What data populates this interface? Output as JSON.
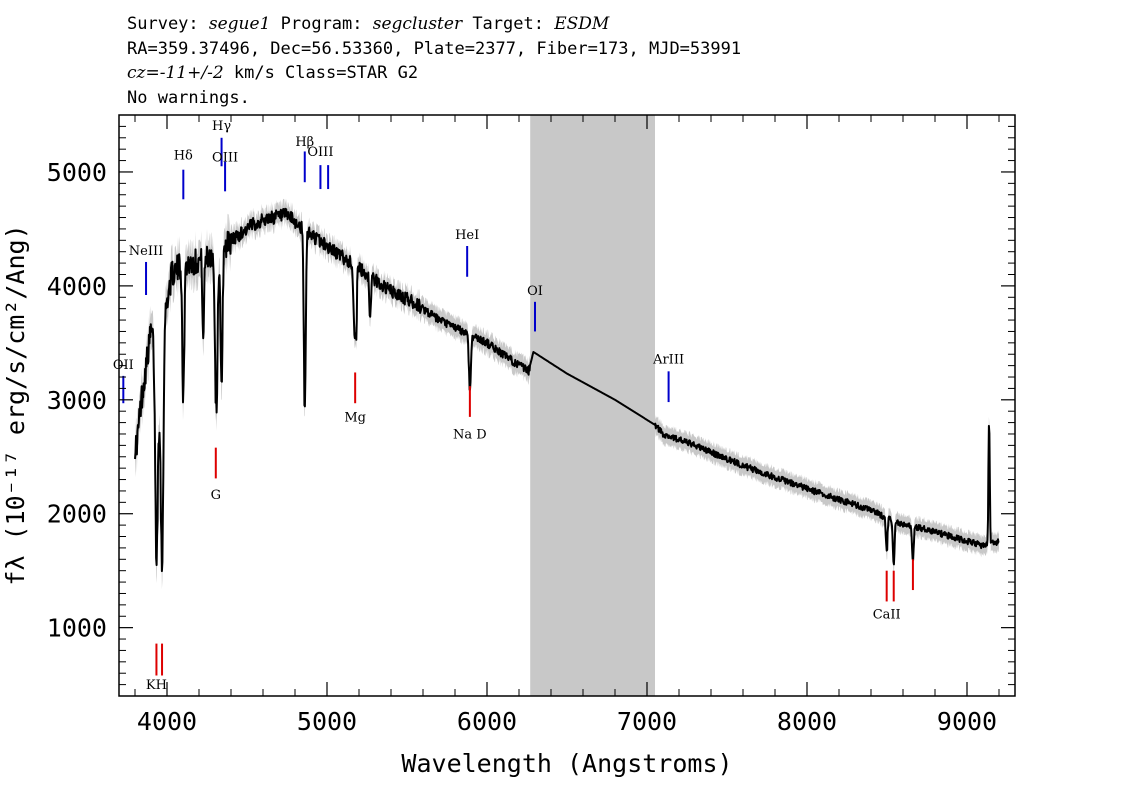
{
  "header": {
    "line1": {
      "survey_label": "Survey: ",
      "survey_value": "segue1",
      "program_label": " Program: ",
      "program_value": "segcluster",
      "target_label": " Target: ",
      "target_value": "ESDM"
    },
    "line2": "RA=359.37496, Dec=56.53360, Plate=2377, Fiber=173, MJD=53991",
    "line3": {
      "cz_value": "cz=-11+/-2",
      "cz_rest": " km/s Class=STAR G2"
    },
    "line4": "No warnings."
  },
  "chart_data": {
    "type": "line",
    "title": "",
    "xlabel": "Wavelength (Angstroms)",
    "ylabel": "f_λ (10^-17 erg/s/cm²/Ang)",
    "ylabel_display": "fλ (10⁻¹⁷ erg/s/cm²/Ang)",
    "xlim": [
      3700,
      9300
    ],
    "ylim": [
      400,
      5500
    ],
    "x_ticks": [
      4000,
      5000,
      6000,
      7000,
      8000,
      9000
    ],
    "x_tick_labels": [
      "4000",
      "5000",
      "6000",
      "7000",
      "8000",
      "9000"
    ],
    "y_ticks": [
      1000,
      2000,
      3000,
      4000,
      5000
    ],
    "y_tick_labels": [
      "1000",
      "2000",
      "3000",
      "4000",
      "5000"
    ],
    "masked_region": [
      6270,
      7050
    ],
    "colors": {
      "spectrum": "#000000",
      "error_band": "#c8c8c8",
      "masked": "#c8c8c8",
      "emission_lines": "#0000cc",
      "absorption_lines": "#dd0000"
    },
    "spectrum_anchor_points": {
      "x": [
        3810,
        3840,
        3870,
        3900,
        3930,
        3950,
        3965,
        3990,
        4030,
        4100,
        4150,
        4250,
        4350,
        4450,
        4550,
        4650,
        4750,
        4850,
        4950,
        5050,
        5150,
        5250,
        5400,
        5550,
        5700,
        5850,
        6000,
        6150,
        6260,
        6290,
        6500,
        6800,
        7050,
        7100,
        7300,
        7500,
        7700,
        7900,
        8100,
        8300,
        8450,
        8500,
        8600,
        8700,
        8850,
        9000,
        9100,
        9200
      ],
      "y": [
        2600,
        3000,
        3300,
        3600,
        3500,
        3100,
        3500,
        3800,
        4100,
        4200,
        4200,
        4250,
        4350,
        4450,
        4550,
        4600,
        4620,
        4500,
        4400,
        4300,
        4200,
        4100,
        3950,
        3850,
        3700,
        3600,
        3500,
        3350,
        3250,
        3420,
        3230,
        3000,
        2780,
        2700,
        2600,
        2480,
        2370,
        2270,
        2170,
        2080,
        2000,
        1960,
        1900,
        1880,
        1820,
        1760,
        1720,
        1750
      ]
    },
    "absorption_features": [
      {
        "x": 3934,
        "depth": 1800,
        "width": 8
      },
      {
        "x": 3969,
        "depth": 2000,
        "width": 8
      },
      {
        "x": 4102,
        "depth": 1200,
        "width": 6
      },
      {
        "x": 4227,
        "depth": 700,
        "width": 5
      },
      {
        "x": 4308,
        "depth": 1400,
        "width": 8
      },
      {
        "x": 4341,
        "depth": 1300,
        "width": 6
      },
      {
        "x": 4861,
        "depth": 1600,
        "width": 6
      },
      {
        "x": 5172,
        "depth": 600,
        "width": 6
      },
      {
        "x": 5183,
        "depth": 500,
        "width": 4
      },
      {
        "x": 5270,
        "depth": 350,
        "width": 5
      },
      {
        "x": 5893,
        "depth": 500,
        "width": 6
      },
      {
        "x": 8498,
        "depth": 300,
        "width": 5
      },
      {
        "x": 8542,
        "depth": 400,
        "width": 5
      },
      {
        "x": 8662,
        "depth": 300,
        "width": 5
      }
    ],
    "spike_features": [
      {
        "x": 9138,
        "height": 1100,
        "width": 4
      }
    ],
    "line_markers": [
      {
        "label": "NeIII",
        "x": 3869,
        "y_bottom": 3920,
        "y_top": 4210,
        "color": "blue",
        "label_y": 4270
      },
      {
        "label": "OII",
        "x": 3727,
        "y_bottom": 2970,
        "y_top": 3210,
        "color": "blue",
        "label_y": 3270
      },
      {
        "label": "Hδ",
        "x": 4102,
        "y_bottom": 4760,
        "y_top": 5020,
        "color": "blue",
        "label_y": 5110
      },
      {
        "label": "Hγ",
        "x": 4341,
        "y_bottom": 5050,
        "y_top": 5300,
        "color": "blue",
        "label_y": 5370
      },
      {
        "label": "OIII",
        "x": 4363,
        "y_bottom": 4830,
        "y_top": 5090,
        "color": "blue",
        "label_y": 5090
      },
      {
        "label": "Hβ",
        "x": 4861,
        "y_bottom": 4910,
        "y_top": 5180,
        "color": "blue",
        "label_y": 5230
      },
      {
        "label": "OIII",
        "x": 4959,
        "y_bottom": 4850,
        "y_top": 5060,
        "color": "blue",
        "label_y": 5140
      },
      {
        "label": "",
        "x": 5007,
        "y_bottom": 4850,
        "y_top": 5060,
        "color": "blue",
        "label_y": 5140
      },
      {
        "label": "HeI",
        "x": 5876,
        "y_bottom": 4080,
        "y_top": 4350,
        "color": "blue",
        "label_y": 4410
      },
      {
        "label": "OI",
        "x": 6300,
        "y_bottom": 3600,
        "y_top": 3860,
        "color": "blue",
        "label_y": 3920
      },
      {
        "label": "ArIII",
        "x": 7135,
        "y_bottom": 2980,
        "y_top": 3250,
        "color": "blue",
        "label_y": 3320
      },
      {
        "label": "KH",
        "x": 3934,
        "y_bottom": 580,
        "y_top": 860,
        "color": "red",
        "label_y": 460
      },
      {
        "label": "",
        "x": 3969,
        "y_bottom": 580,
        "y_top": 860,
        "color": "red",
        "label_y": 460
      },
      {
        "label": "G",
        "x": 4305,
        "y_bottom": 2310,
        "y_top": 2580,
        "color": "red",
        "label_y": 2130
      },
      {
        "label": "Mg",
        "x": 5176,
        "y_bottom": 2970,
        "y_top": 3240,
        "color": "red",
        "label_y": 2810
      },
      {
        "label": "Na D",
        "x": 5893,
        "y_bottom": 2850,
        "y_top": 3120,
        "color": "red",
        "label_y": 2660
      },
      {
        "label": "CaII",
        "x": 8498,
        "y_bottom": 1230,
        "y_top": 1500,
        "color": "red",
        "label_y": 1080
      },
      {
        "label": "",
        "x": 8542,
        "y_bottom": 1230,
        "y_top": 1500,
        "color": "red",
        "label_y": 1080
      },
      {
        "label": "",
        "x": 8662,
        "y_bottom": 1330,
        "y_top": 1600,
        "color": "red",
        "label_y": 1080
      }
    ]
  }
}
